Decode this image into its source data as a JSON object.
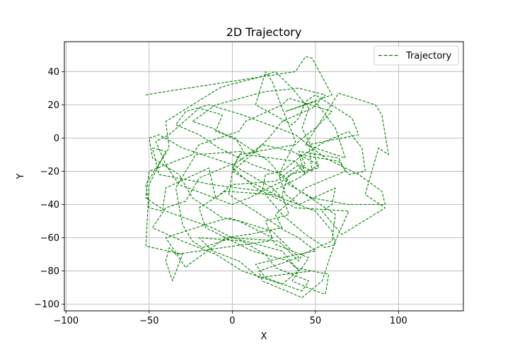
{
  "chart_data": {
    "type": "line",
    "title": "2D Trajectory",
    "xlabel": "X",
    "ylabel": "Y",
    "xlim": [
      -101,
      139
    ],
    "ylim": [
      -104,
      58
    ],
    "xticks": [
      -100,
      -50,
      0,
      50,
      100
    ],
    "yticks": [
      -100,
      -80,
      -60,
      -40,
      -20,
      0,
      20,
      40
    ],
    "grid": true,
    "legend_position": "top-right",
    "line_style": "dashed",
    "series": [
      {
        "name": "Trajectory",
        "color": "#008000",
        "x": [
          -52,
          -40,
          38,
          44,
          48,
          60,
          32,
          50,
          62,
          68,
          44,
          64,
          86,
          90,
          94,
          88,
          80,
          92,
          66,
          54,
          60,
          62,
          40,
          32,
          28,
          38,
          30,
          24,
          20,
          14,
          36,
          40,
          44,
          50,
          72,
          76,
          46,
          48,
          40,
          26,
          0,
          -10,
          -14,
          -40,
          -42,
          -50,
          -52,
          -38,
          -40,
          -8,
          -2,
          14,
          26,
          36,
          46,
          42,
          48,
          52,
          34,
          30,
          34,
          20,
          24,
          22,
          8,
          -34,
          -38,
          -40,
          -36,
          -30,
          -52,
          -50,
          -44,
          -40,
          -48,
          -44,
          -12,
          18,
          20,
          30,
          40,
          56,
          70,
          78,
          80,
          70,
          64,
          40,
          44,
          38,
          8,
          2,
          -10,
          -6,
          -20,
          -38,
          -46,
          -40,
          -32,
          0,
          10,
          30,
          44,
          40,
          64,
          68,
          44,
          26,
          30,
          10,
          -4,
          -26,
          -28,
          -40,
          -16,
          -2,
          24,
          40,
          16,
          18,
          42,
          54,
          62,
          70,
          38,
          14,
          0,
          6,
          -22,
          -34,
          -30,
          -24,
          -18,
          0,
          30,
          40,
          36,
          50,
          56,
          58,
          38,
          34,
          12,
          4,
          -16,
          -20,
          -4,
          24,
          50,
          60,
          62,
          56,
          44,
          30,
          20,
          40,
          52,
          36,
          18,
          4,
          -20,
          -28,
          -40,
          -48,
          -30,
          -10,
          6,
          30,
          42,
          46,
          26,
          24,
          4,
          -6,
          -24,
          -32,
          -48,
          -50,
          -44,
          -30,
          0,
          24,
          30,
          10,
          0,
          4,
          38,
          40,
          50,
          60,
          34,
          30,
          8,
          4,
          -20,
          -24,
          -50,
          -52,
          -40,
          -12,
          0,
          28,
          40,
          42,
          60,
          62,
          38,
          30,
          12,
          -8,
          -20,
          -34,
          -28,
          -14,
          6,
          38,
          48,
          56,
          76,
          90,
          92,
          70,
          48,
          34,
          22,
          4,
          -12,
          -24,
          -10,
          20,
          40,
          56,
          48,
          30,
          22,
          14,
          0,
          -2,
          20,
          32,
          40,
          50,
          30,
          14,
          20,
          36,
          42,
          46,
          26,
          20,
          6,
          -20,
          -12,
          4,
          16,
          48
        ],
        "y": [
          26,
          28,
          40,
          49,
          48,
          26,
          16,
          22,
          6,
          -12,
          -4,
          27,
          20,
          14,
          -10,
          -6,
          -34,
          -42,
          -58,
          -44,
          -40,
          -30,
          -40,
          -34,
          -22,
          -2,
          18,
          34,
          40,
          20,
          8,
          12,
          22,
          26,
          12,
          2,
          -4,
          -20,
          -16,
          -26,
          -28,
          -36,
          -18,
          -30,
          -44,
          -42,
          -28,
          -6,
          10,
          30,
          32,
          36,
          40,
          30,
          18,
          6,
          -6,
          -18,
          -22,
          -34,
          -46,
          -50,
          -60,
          -62,
          -64,
          -70,
          -66,
          -74,
          -86,
          -70,
          -65,
          -28,
          -16,
          -8,
          -6,
          -22,
          -28,
          -32,
          -22,
          -20,
          -12,
          -2,
          4,
          -6,
          -20,
          -22,
          -14,
          -10,
          -22,
          -14,
          -10,
          0,
          4,
          14,
          18,
          2,
          -2,
          -16,
          -28,
          -40,
          -36,
          -26,
          -16,
          -8,
          -12,
          -20,
          -30,
          -46,
          -54,
          -58,
          -60,
          -76,
          -78,
          -60,
          -52,
          -48,
          -56,
          -72,
          -80,
          -86,
          -96,
          -86,
          -62,
          -44,
          -42,
          -30,
          -18,
          -8,
          -10,
          -30,
          -52,
          -62,
          -66,
          -60,
          -68,
          -80,
          -86,
          -92,
          -94,
          -82,
          -78,
          -74,
          -68,
          -64,
          -54,
          -42,
          -32,
          -34,
          -44,
          -56,
          -64,
          -66,
          -58,
          -46,
          -34,
          -24,
          -16,
          -8,
          -4,
          -14,
          -24,
          -38,
          -42,
          -54,
          -62,
          -70,
          -80,
          -88,
          -78,
          -72,
          -64,
          -60,
          -50,
          -48,
          -36,
          -22,
          -12,
          0,
          2,
          -6,
          -16,
          -30,
          -36,
          -26,
          -20,
          -10,
          -4,
          -2,
          6,
          16,
          24,
          20,
          10,
          4,
          -4,
          -10,
          -20,
          -36,
          -44,
          -54,
          -60,
          -62,
          -74,
          -70,
          -62,
          -46,
          -30,
          -22,
          -16,
          -6,
          2,
          8,
          16,
          20,
          14,
          2,
          -6,
          -12,
          -22,
          -32,
          -40,
          -40,
          -36,
          -28,
          -14,
          -2,
          6,
          10,
          20,
          28,
          30,
          26,
          18,
          10,
          0,
          -8,
          -20,
          -34,
          -48,
          -56,
          -60,
          -68,
          -72,
          -76,
          -84,
          -90,
          -92,
          -86,
          -78,
          -70,
          -62,
          -60,
          -68,
          -74,
          -84,
          -80
        ]
      }
    ]
  }
}
